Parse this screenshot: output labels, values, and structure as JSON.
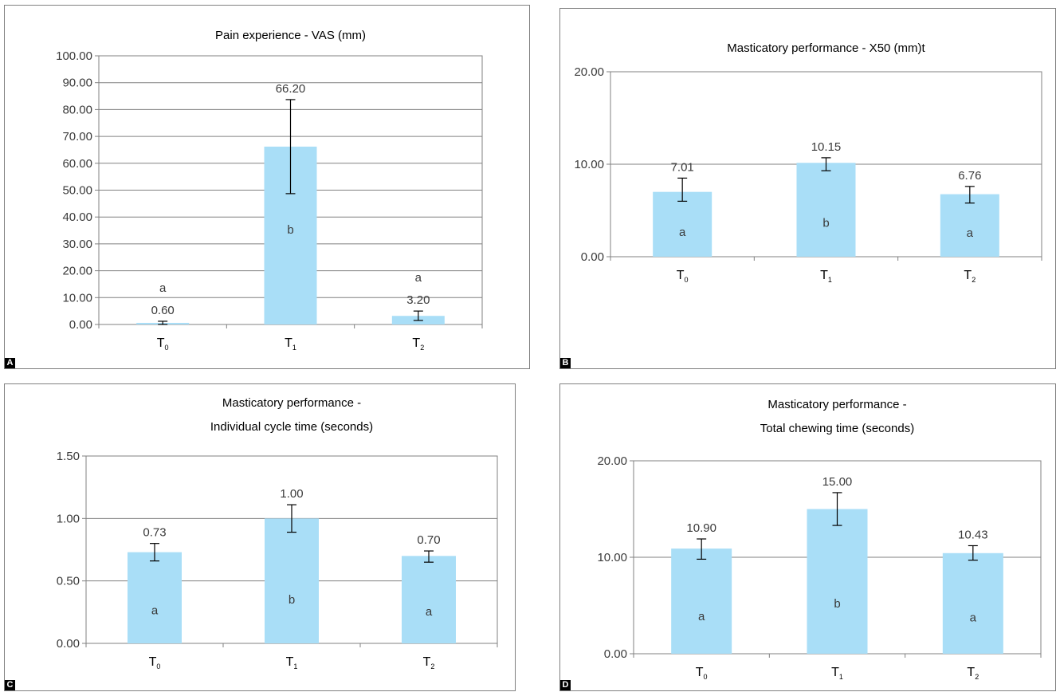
{
  "colors": {
    "bar": "#a9def7",
    "grid": "#808080",
    "axis": "#808080",
    "text": "#000000",
    "value_text": "#3a3a3a"
  },
  "panels": [
    {
      "id": "A",
      "panel_label": "A"
    },
    {
      "id": "B",
      "panel_label": "B"
    },
    {
      "id": "C",
      "panel_label": "C"
    },
    {
      "id": "D",
      "panel_label": "D"
    }
  ],
  "chart_data": [
    {
      "type": "bar",
      "title": [
        "Pain experience - VAS (mm)"
      ],
      "categories": [
        {
          "base": "T",
          "sub": "0"
        },
        {
          "base": "T",
          "sub": "1"
        },
        {
          "base": "T",
          "sub": "2"
        }
      ],
      "values": [
        0.6,
        66.2,
        3.2
      ],
      "value_labels": [
        "0.60",
        "66.20",
        "3.20"
      ],
      "error_low": [
        0.0,
        48.7,
        1.5
      ],
      "error_high": [
        1.2,
        83.7,
        5.0
      ],
      "groups": [
        "a",
        "b",
        "a"
      ],
      "ylim": [
        0,
        100
      ],
      "yticks": [
        "0.00",
        "10.00",
        "20.00",
        "30.00",
        "40.00",
        "50.00",
        "60.00",
        "70.00",
        "80.00",
        "90.00",
        "100.00"
      ],
      "grid": true,
      "legend": "none"
    },
    {
      "type": "bar",
      "title": [
        "Masticatory performance - X50 (mm)t"
      ],
      "categories": [
        {
          "base": "T",
          "sub": "0"
        },
        {
          "base": "T",
          "sub": "1"
        },
        {
          "base": "T",
          "sub": "2"
        }
      ],
      "values": [
        7.01,
        10.15,
        6.76
      ],
      "value_labels": [
        "7.01",
        "10.15",
        "6.76"
      ],
      "error_low": [
        6.0,
        9.3,
        5.8
      ],
      "error_high": [
        8.5,
        10.7,
        7.6
      ],
      "groups": [
        "a",
        "b",
        "a"
      ],
      "ylim": [
        0,
        20
      ],
      "yticks": [
        "0.00",
        "10.00",
        "20.00"
      ],
      "grid": true,
      "legend": "none"
    },
    {
      "type": "bar",
      "title": [
        "Masticatory performance -",
        "Individual cycle time (seconds)"
      ],
      "categories": [
        {
          "base": "T",
          "sub": "0"
        },
        {
          "base": "T",
          "sub": "1"
        },
        {
          "base": "T",
          "sub": "2"
        }
      ],
      "values": [
        0.73,
        1.0,
        0.7
      ],
      "value_labels": [
        "0.73",
        "1.00",
        "0.70"
      ],
      "error_low": [
        0.66,
        0.89,
        0.65
      ],
      "error_high": [
        0.8,
        1.11,
        0.74
      ],
      "groups": [
        "a",
        "b",
        "a"
      ],
      "ylim": [
        0,
        1.5
      ],
      "yticks": [
        "0.00",
        "0.50",
        "1.00",
        "1.50"
      ],
      "grid": true,
      "legend": "none"
    },
    {
      "type": "bar",
      "title": [
        "Masticatory performance -",
        "Total chewing time (seconds)"
      ],
      "categories": [
        {
          "base": "T",
          "sub": "0"
        },
        {
          "base": "T",
          "sub": "1"
        },
        {
          "base": "T",
          "sub": "2"
        }
      ],
      "values": [
        10.9,
        15.0,
        10.43
      ],
      "value_labels": [
        "10.90",
        "15.00",
        "10.43"
      ],
      "error_low": [
        9.8,
        13.3,
        9.7
      ],
      "error_high": [
        11.9,
        16.7,
        11.2
      ],
      "groups": [
        "a",
        "b",
        "a"
      ],
      "ylim": [
        0,
        20
      ],
      "yticks": [
        "0.00",
        "10.00",
        "20.00"
      ],
      "grid": true,
      "legend": "none"
    }
  ]
}
